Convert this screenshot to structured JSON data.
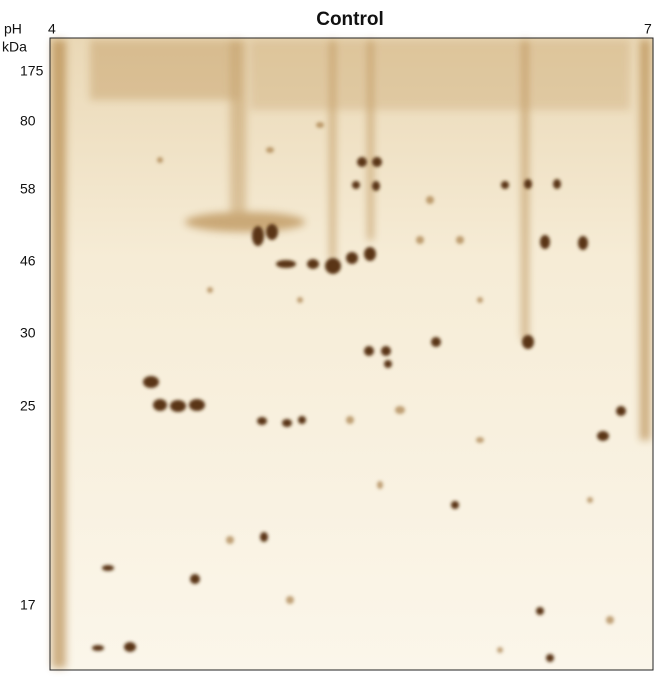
{
  "title": "Control",
  "ph_label": "pH",
  "ph_start": "4",
  "ph_end": "7",
  "mw_unit": "kDa",
  "mw_markers": [
    "175",
    "80",
    "58",
    "46",
    "30",
    "25",
    "17"
  ]
}
